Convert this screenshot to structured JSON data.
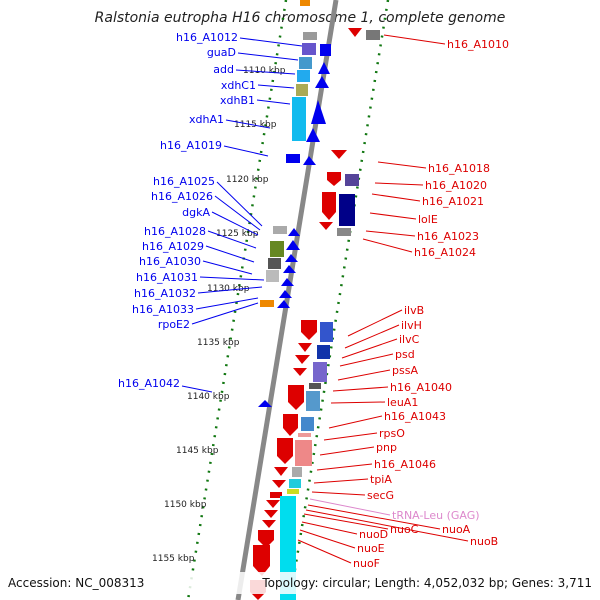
{
  "title": "Ralstonia eutropha H16 chromosome 1, complete genome",
  "accession_label": "Accession: NC_008313",
  "summary_label": "Topology: circular; Length: 4,052,032 bp; Genes: 3,711",
  "colors": {
    "left_strand": "#0000ee",
    "right_strand": "#dd0000",
    "trna": "#dd88cc",
    "scale_ticks": "#117711",
    "backbone": "#888888"
  },
  "scale_ticks": [
    {
      "label": "1110 kbp",
      "kbp": 1110
    },
    {
      "label": "1115 kbp",
      "kbp": 1115
    },
    {
      "label": "1120 kbp",
      "kbp": 1120
    },
    {
      "label": "1125 kbp",
      "kbp": 1125
    },
    {
      "label": "1130 kbp",
      "kbp": 1130
    },
    {
      "label": "1135 kbp",
      "kbp": 1135
    },
    {
      "label": "1140 kbp",
      "kbp": 1140
    },
    {
      "label": "1145 kbp",
      "kbp": 1145
    },
    {
      "label": "1150 kbp",
      "kbp": 1150
    },
    {
      "label": "1155 kbp",
      "kbp": 1155
    }
  ],
  "left_genes": [
    {
      "name": "h16_A1012"
    },
    {
      "name": "guaD"
    },
    {
      "name": "add"
    },
    {
      "name": "xdhC1"
    },
    {
      "name": "xdhB1"
    },
    {
      "name": "xdhA1"
    },
    {
      "name": "h16_A1019"
    },
    {
      "name": "h16_A1025"
    },
    {
      "name": "h16_A1026"
    },
    {
      "name": "dgkA"
    },
    {
      "name": "h16_A1028"
    },
    {
      "name": "h16_A1029"
    },
    {
      "name": "h16_A1030"
    },
    {
      "name": "h16_A1031"
    },
    {
      "name": "h16_A1032"
    },
    {
      "name": "h16_A1033"
    },
    {
      "name": "rpoE2"
    },
    {
      "name": "h16_A1042"
    }
  ],
  "right_genes": [
    {
      "name": "h16_A1010"
    },
    {
      "name": "h16_A1018"
    },
    {
      "name": "h16_A1020"
    },
    {
      "name": "h16_A1021"
    },
    {
      "name": "lolE"
    },
    {
      "name": "h16_A1023"
    },
    {
      "name": "h16_A1024"
    },
    {
      "name": "ilvB"
    },
    {
      "name": "ilvH"
    },
    {
      "name": "ilvC"
    },
    {
      "name": "psd"
    },
    {
      "name": "pssA"
    },
    {
      "name": "h16_A1040"
    },
    {
      "name": "leuA1"
    },
    {
      "name": "h16_A1043"
    },
    {
      "name": "rpsO"
    },
    {
      "name": "pnp"
    },
    {
      "name": "h16_A1046"
    },
    {
      "name": "tpiA"
    },
    {
      "name": "secG"
    },
    {
      "name": "tRNA-Leu (GAG)",
      "type": "trna"
    },
    {
      "name": "nuoA"
    },
    {
      "name": "nuoB"
    },
    {
      "name": "nuoC"
    },
    {
      "name": "nuoD"
    },
    {
      "name": "nuoE"
    },
    {
      "name": "nuoF"
    }
  ]
}
